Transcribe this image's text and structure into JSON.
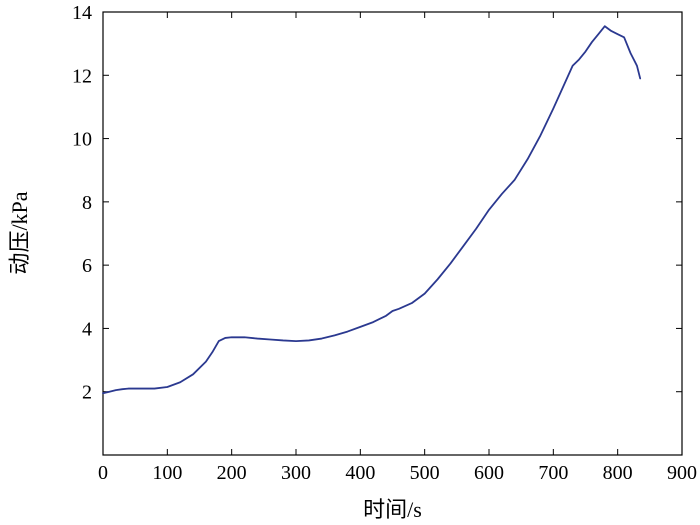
{
  "chart_data": {
    "type": "line",
    "title": "",
    "xlabel": "时间/s",
    "ylabel": "动压/kPa",
    "xlim": [
      0,
      900
    ],
    "ylim": [
      0,
      14
    ],
    "xticks": [
      0,
      100,
      200,
      300,
      400,
      500,
      600,
      700,
      800,
      900
    ],
    "yticks": [
      2,
      4,
      6,
      8,
      10,
      12,
      14
    ],
    "grid": false,
    "legend": "none",
    "series": [
      {
        "color": "#2b3990",
        "x": [
          0,
          10,
          20,
          30,
          40,
          60,
          80,
          100,
          120,
          140,
          160,
          170,
          180,
          190,
          200,
          220,
          240,
          260,
          280,
          300,
          320,
          340,
          360,
          380,
          400,
          420,
          440,
          450,
          460,
          480,
          500,
          520,
          540,
          560,
          580,
          600,
          620,
          640,
          660,
          680,
          700,
          710,
          720,
          730,
          740,
          750,
          760,
          770,
          780,
          790,
          800,
          810,
          820,
          830,
          835
        ],
        "y": [
          1.95,
          2.0,
          2.05,
          2.08,
          2.1,
          2.1,
          2.1,
          2.15,
          2.3,
          2.55,
          2.95,
          3.25,
          3.6,
          3.7,
          3.72,
          3.72,
          3.68,
          3.65,
          3.62,
          3.6,
          3.62,
          3.68,
          3.78,
          3.9,
          4.05,
          4.2,
          4.4,
          4.55,
          4.62,
          4.8,
          5.1,
          5.55,
          6.05,
          6.6,
          7.15,
          7.75,
          8.25,
          8.7,
          9.35,
          10.1,
          10.95,
          11.4,
          11.85,
          12.3,
          12.5,
          12.75,
          13.05,
          13.3,
          13.55,
          13.4,
          13.3,
          13.2,
          12.7,
          12.3,
          11.9
        ]
      }
    ]
  }
}
